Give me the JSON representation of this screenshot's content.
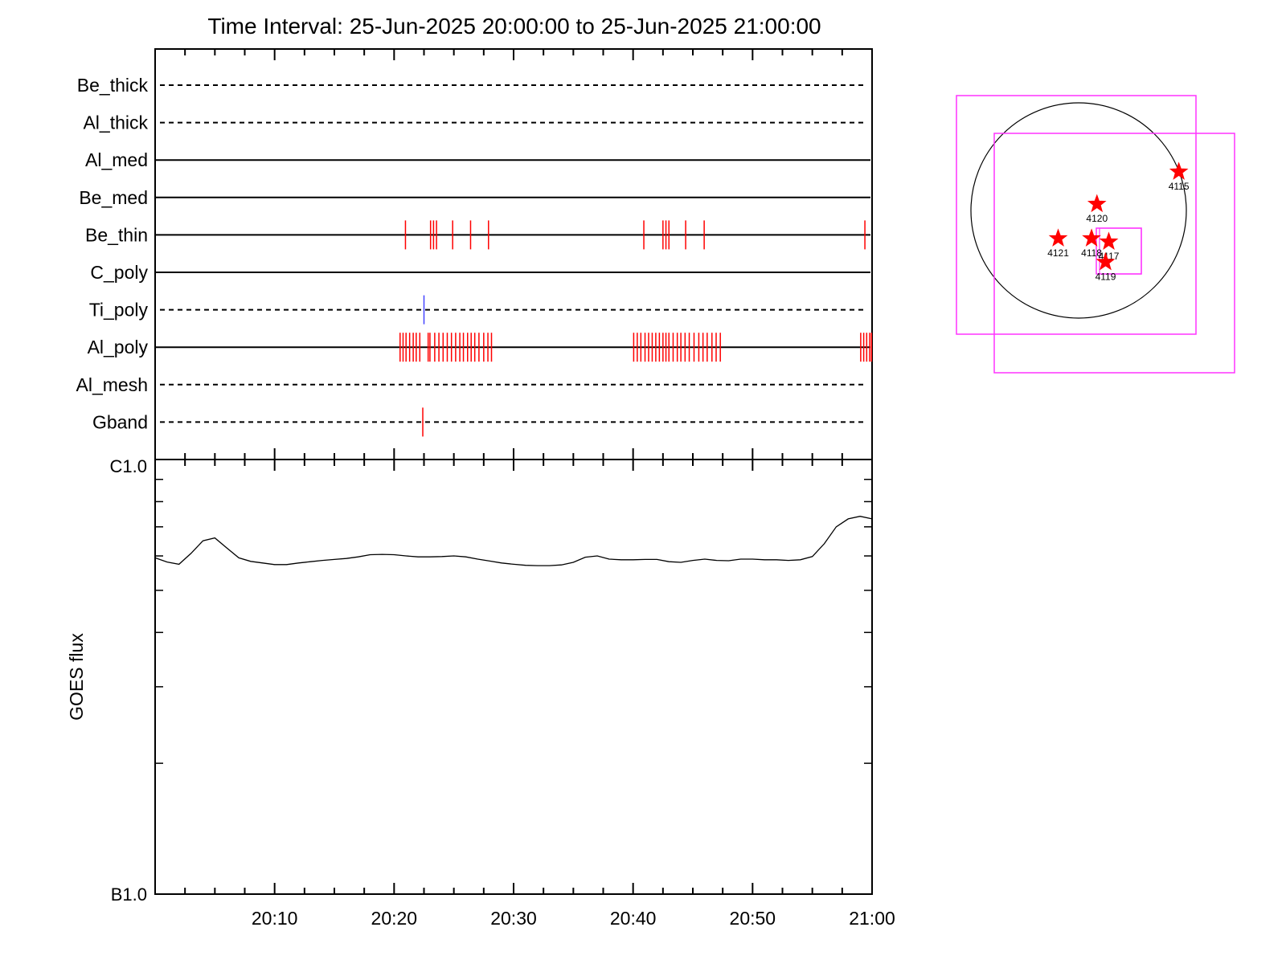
{
  "chart_data": [
    {
      "type": "timeline",
      "title": "Time Interval: 25-Jun-2025 20:00:00 to 25-Jun-2025 21:00:00",
      "time_range": [
        "20:00",
        "21:00"
      ],
      "channels": [
        {
          "name": "Be_thick",
          "line": "dashed",
          "events": [],
          "event_color": "#ff0000"
        },
        {
          "name": "Al_thick",
          "line": "dashed",
          "events": [],
          "event_color": "#ff0000"
        },
        {
          "name": "Al_med",
          "line": "solid",
          "events": [],
          "event_color": "#ff0000"
        },
        {
          "name": "Be_med",
          "line": "solid",
          "events": [],
          "event_color": "#ff0000"
        },
        {
          "name": "Be_thin",
          "line": "solid",
          "event_color": "#ff0000",
          "events": [
            20.95,
            23.05,
            23.3,
            23.55,
            24.9,
            26.4,
            27.9,
            40.9,
            42.5,
            42.75,
            43.0,
            44.4,
            45.95,
            59.4
          ]
        },
        {
          "name": "C_poly",
          "line": "solid",
          "events": [],
          "event_color": "#ff0000"
        },
        {
          "name": "Ti_poly",
          "line": "dashed",
          "event_color": "#4444ff",
          "events": [
            22.5
          ]
        },
        {
          "name": "Al_poly",
          "line": "solid",
          "event_color": "#ff0000",
          "events": [
            20.5,
            20.75,
            21.0,
            21.3,
            21.6,
            21.85,
            22.15,
            22.85,
            23.0,
            23.4,
            23.75,
            24.1,
            24.45,
            24.8,
            25.15,
            25.5,
            25.8,
            26.15,
            26.45,
            26.75,
            27.1,
            27.5,
            27.85,
            28.15,
            40.05,
            40.35,
            40.65,
            41.0,
            41.3,
            41.6,
            41.9,
            42.2,
            42.5,
            42.75,
            43.0,
            43.35,
            43.7,
            44.0,
            44.35,
            44.7,
            45.1,
            45.5,
            45.85,
            46.2,
            46.6,
            46.95,
            47.3,
            59.05,
            59.3,
            59.55,
            59.8,
            59.95
          ]
        },
        {
          "name": "Al_mesh",
          "line": "dashed",
          "events": [],
          "event_color": "#ff0000"
        },
        {
          "name": "Gband",
          "line": "dashed",
          "event_color": "#ff0000",
          "events": [
            22.4
          ]
        }
      ]
    },
    {
      "type": "line",
      "ylabel": "GOES flux",
      "ylim_labels": [
        "B1.0",
        "C1.0"
      ],
      "x_ticks": [
        "20:10",
        "20:20",
        "20:30",
        "20:40",
        "20:50",
        "21:00"
      ],
      "ylim": [
        1e-07,
        1e-06
      ],
      "yscale": "log",
      "x_minutes": [
        0,
        1,
        2,
        3,
        4,
        5,
        6,
        7,
        8,
        9,
        10,
        11,
        12,
        13,
        14,
        15,
        16,
        17,
        18,
        19,
        20,
        21,
        22,
        23,
        24,
        25,
        26,
        27,
        28,
        29,
        30,
        31,
        32,
        33,
        34,
        35,
        36,
        37,
        38,
        39,
        40,
        41,
        42,
        43,
        44,
        45,
        46,
        47,
        48,
        49,
        50,
        51,
        52,
        53,
        54,
        55,
        56,
        57,
        58,
        59,
        60
      ],
      "series": [
        {
          "color": "#000000",
          "values": [
            5.94e-07,
            5.81e-07,
            5.74e-07,
            6.08e-07,
            6.5e-07,
            6.6e-07,
            6.26e-07,
            5.94e-07,
            5.83e-07,
            5.78e-07,
            5.73e-07,
            5.73e-07,
            5.78e-07,
            5.82e-07,
            5.86e-07,
            5.89e-07,
            5.92e-07,
            5.97e-07,
            6.04e-07,
            6.05e-07,
            6.04e-07,
            6e-07,
            5.97e-07,
            5.97e-07,
            5.98e-07,
            6e-07,
            5.97e-07,
            5.9e-07,
            5.84e-07,
            5.78e-07,
            5.74e-07,
            5.71e-07,
            5.7e-07,
            5.7e-07,
            5.72e-07,
            5.8e-07,
            5.96e-07,
            6e-07,
            5.9e-07,
            5.88e-07,
            5.88e-07,
            5.89e-07,
            5.89e-07,
            5.82e-07,
            5.8e-07,
            5.86e-07,
            5.9e-07,
            5.86e-07,
            5.85e-07,
            5.9e-07,
            5.9e-07,
            5.88e-07,
            5.88e-07,
            5.86e-07,
            5.88e-07,
            5.98e-07,
            6.4e-07,
            7e-07,
            7.3e-07,
            7.4e-07,
            7.3e-07
          ]
        }
      ]
    },
    {
      "type": "solar_map",
      "circle_color": "#000000",
      "box_color": "#ff33ff",
      "marker_color": "#ff0000",
      "markers": [
        {
          "label": "4115",
          "x": 0.93,
          "y": 0.36
        },
        {
          "label": "4120",
          "x": 0.17,
          "y": 0.06
        },
        {
          "label": "4121",
          "x": -0.19,
          "y": -0.26
        },
        {
          "label": "4118",
          "x": 0.12,
          "y": -0.26
        },
        {
          "label": "4117",
          "x": 0.28,
          "y": -0.29
        },
        {
          "label": "4119",
          "x": 0.25,
          "y": -0.48
        }
      ]
    }
  ]
}
